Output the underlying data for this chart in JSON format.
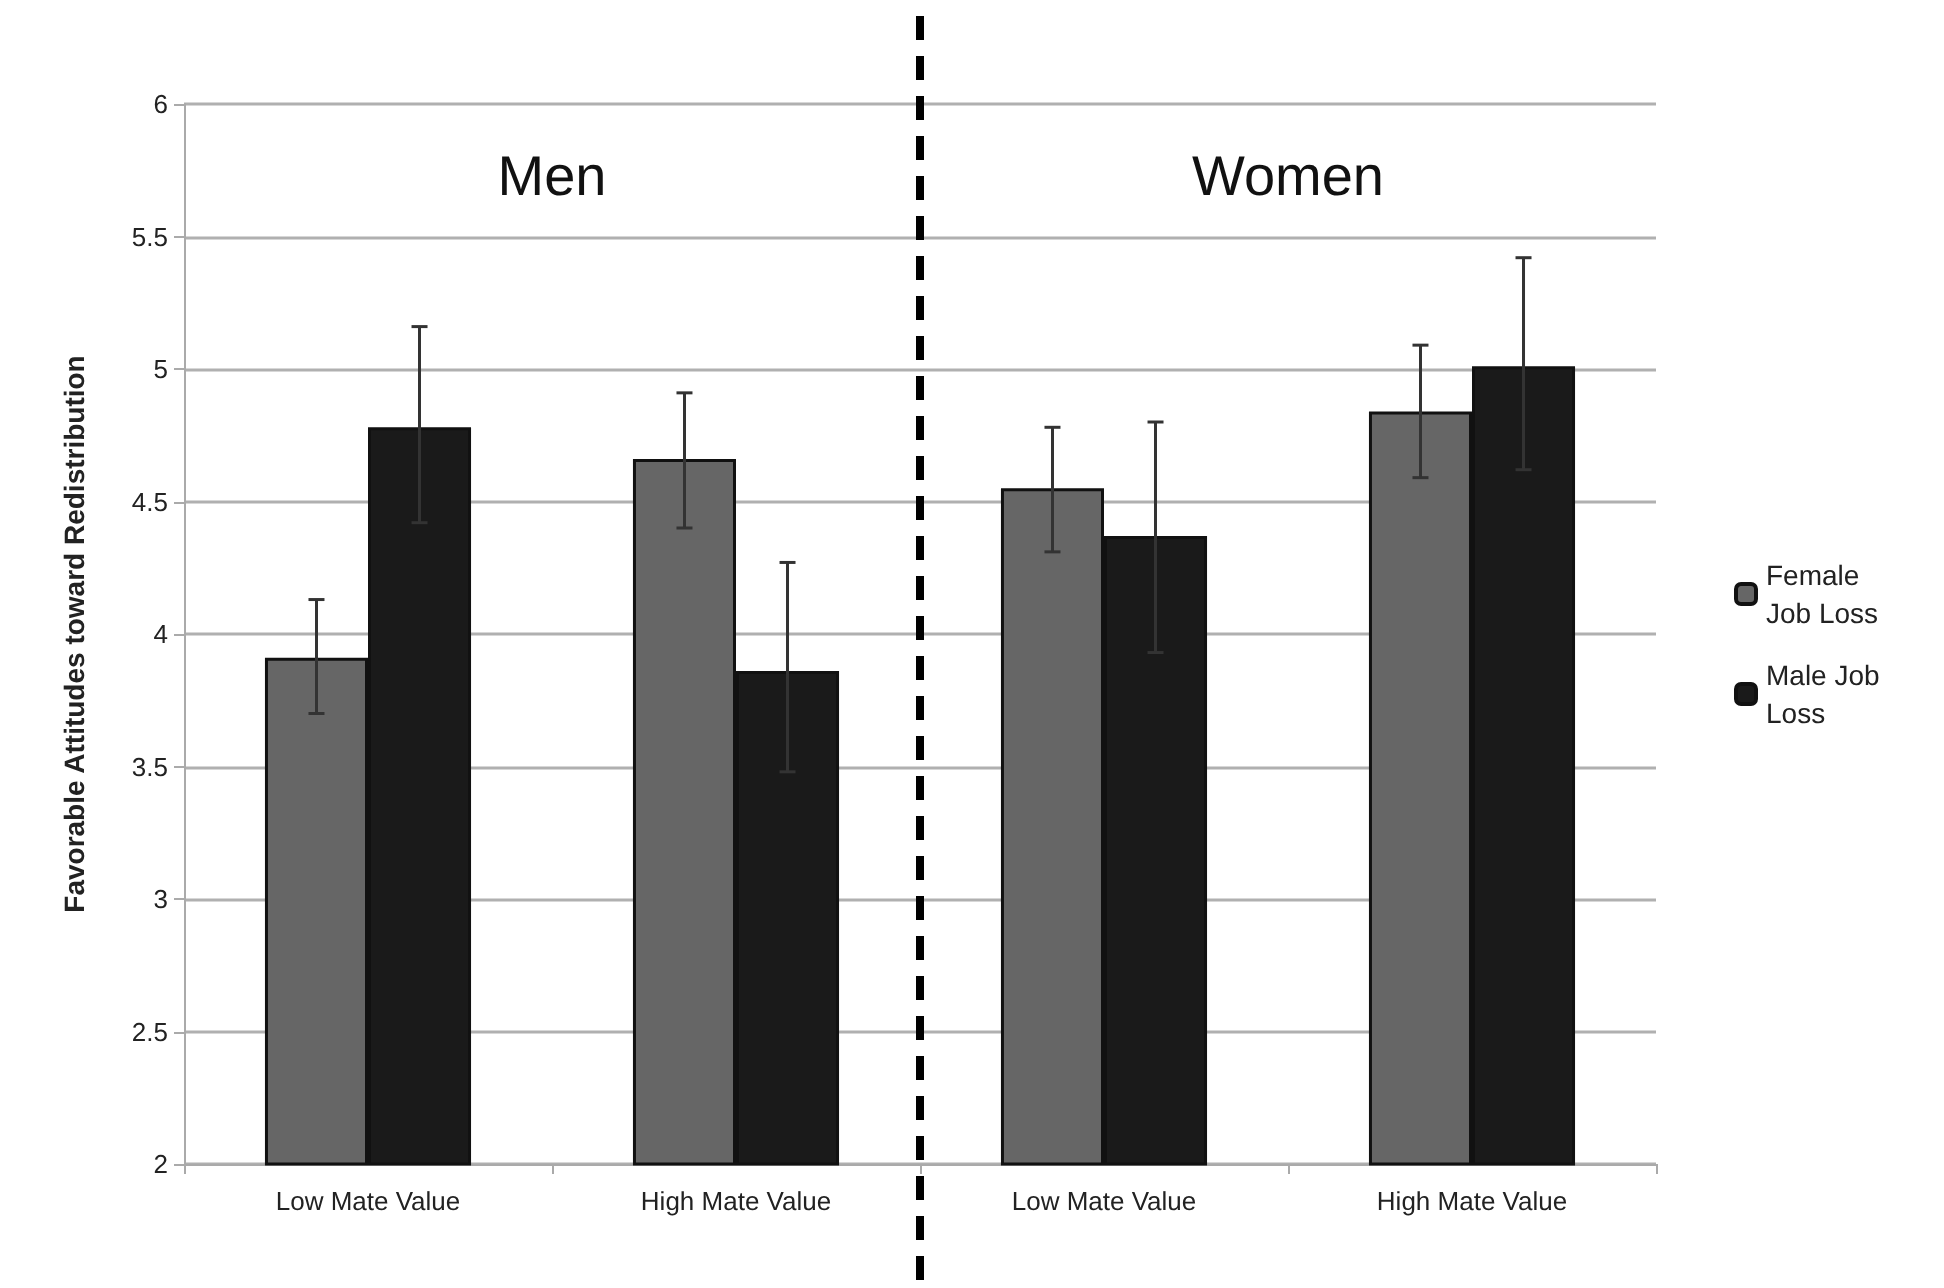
{
  "chart_data": {
    "type": "bar",
    "ylabel": "Favorable Attitudes toward Redistribution",
    "categories": [
      "Low Mate Value",
      "High Mate Value",
      "Low Mate Value",
      "High Mate Value"
    ],
    "series": [
      {
        "name": "Female Job Loss",
        "color": "#666666",
        "values": [
          3.91,
          4.66,
          4.55,
          4.84
        ],
        "errors": [
          [
            3.7,
            4.13
          ],
          [
            4.4,
            4.91
          ],
          [
            4.31,
            4.78
          ],
          [
            4.59,
            5.09
          ]
        ]
      },
      {
        "name": "Male Job Loss",
        "color": "#1a1a1a",
        "values": [
          4.78,
          3.86,
          4.37,
          5.01
        ],
        "errors": [
          [
            4.42,
            5.16
          ],
          [
            3.48,
            4.27
          ],
          [
            3.93,
            4.8
          ],
          [
            4.62,
            5.42
          ]
        ]
      }
    ],
    "annotations": [
      "Men",
      "Women"
    ],
    "ylim": [
      2,
      6
    ],
    "yticks": [
      2,
      2.5,
      3,
      3.5,
      4,
      4.5,
      5,
      5.5,
      6
    ],
    "grid": "y",
    "legend": "right"
  }
}
